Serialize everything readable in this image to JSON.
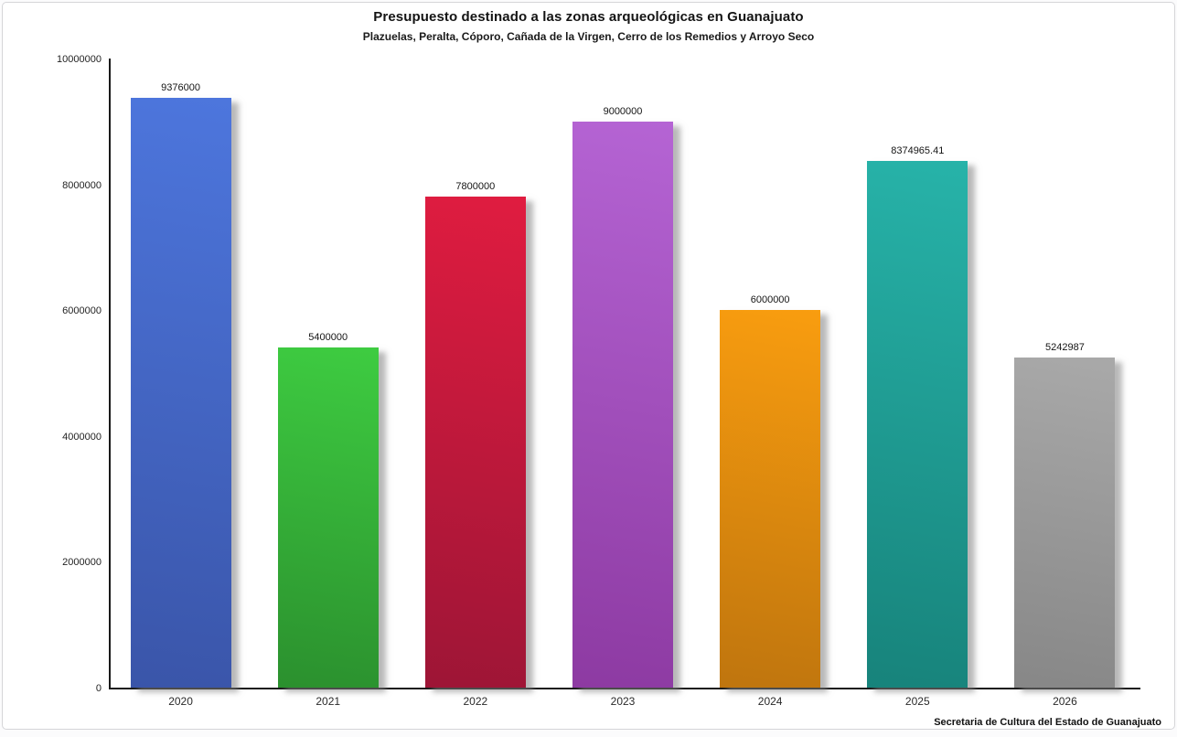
{
  "chart_data": {
    "type": "bar",
    "title": "Presupuesto destinado a las zonas arqueológicas en Guanajuato",
    "subtitle": "Plazuelas, Peralta, Cóporo, Cañada de la Virgen, Cerro de los Remedios y Arroyo Seco",
    "source": "Secretaria de Cultura del Estado de Guanajuato",
    "categories": [
      "2020",
      "2021",
      "2022",
      "2023",
      "2024",
      "2025",
      "2026"
    ],
    "values": [
      9376000,
      5400000,
      7800000,
      9000000,
      6000000,
      8374965.41,
      5242987
    ],
    "value_labels": [
      "9376000",
      "5400000",
      "7800000",
      "9000000",
      "6000000",
      "8374965.41",
      "5242987"
    ],
    "bar_colors": [
      {
        "top": "#4d76dd",
        "bottom": "#3a55a9"
      },
      {
        "top": "#3ecc41",
        "bottom": "#2b902e"
      },
      {
        "top": "#e01c40",
        "bottom": "#9d1536"
      },
      {
        "top": "#b564d4",
        "bottom": "#8d3aa2"
      },
      {
        "top": "#f99d0f",
        "bottom": "#bf750e"
      },
      {
        "top": "#27b3a9",
        "bottom": "#17837b"
      },
      {
        "top": "#a9a9a9",
        "bottom": "#878787"
      }
    ],
    "xlabel": "",
    "ylabel": "",
    "ylim": [
      0,
      10000000
    ],
    "yticks": [
      0,
      2000000,
      4000000,
      6000000,
      8000000,
      10000000
    ],
    "ytick_labels": [
      "0",
      "2000000",
      "4000000",
      "6000000",
      "8000000",
      "10000000"
    ],
    "grid": false,
    "legend": false,
    "axis_color": "#1a1a1a"
  }
}
